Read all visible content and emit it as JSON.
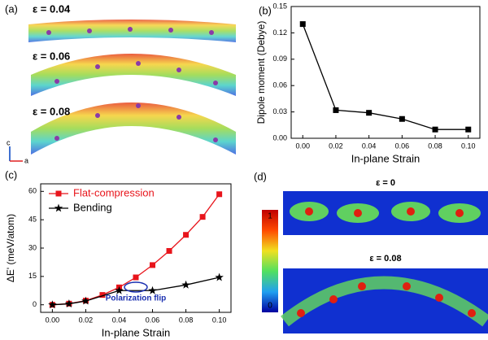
{
  "panel_a": {
    "panel_label": "(a)",
    "strains": [
      "ε = 0.04",
      "ε = 0.06",
      "ε = 0.08"
    ],
    "axis_c": "c",
    "axis_a": "a"
  },
  "chart_data": [
    {
      "type": "line",
      "panel_label": "(b)",
      "x_label": "In-plane Strain",
      "y_label": "Dipole moment (Debye)",
      "xlim": [
        -0.007,
        0.107
      ],
      "ylim": [
        0,
        0.15
      ],
      "xticks": [
        {
          "value": 0,
          "label": "0.00"
        },
        0.02,
        0.04,
        0.06,
        0.08,
        {
          "value": 0.1,
          "label": "0.10"
        }
      ],
      "yticks": [
        {
          "value": 0,
          "label": "0.00"
        },
        0.03,
        0.06,
        0.09,
        0.12,
        0.15
      ],
      "series": [
        {
          "color": "#000000",
          "marker": "square",
          "x": [
            0,
            0.02,
            0.04,
            0.06,
            0.08,
            0.1
          ],
          "values": [
            0.13,
            0.032,
            0.029,
            0.022,
            0.01,
            0.01
          ]
        }
      ]
    },
    {
      "type": "line",
      "panel_label": "(c)",
      "x_label": "In-plane Strain",
      "y_label": "ΔE' (meV/atom)",
      "xlim": [
        -0.007,
        0.107
      ],
      "ylim": [
        -4,
        64
      ],
      "xticks": [
        {
          "value": 0,
          "label": "0.00"
        },
        0.02,
        0.04,
        0.06,
        0.08,
        {
          "value": 0.1,
          "label": "0.10"
        }
      ],
      "yticks": [
        0,
        15,
        30,
        45,
        60
      ],
      "legend": "upper-left",
      "annotation": "Polarization flip",
      "series": [
        {
          "name": "Flat-compression",
          "color": "#e8141b",
          "marker": "square",
          "x": [
            0,
            0.01,
            0.02,
            0.03,
            0.04,
            0.05,
            0.06,
            0.07,
            0.08,
            0.09,
            0.1
          ],
          "values": [
            0,
            0.6,
            2.2,
            5.2,
            9.2,
            14.5,
            21,
            28.5,
            37,
            46.5,
            58.5
          ]
        },
        {
          "name": "Bending",
          "color": "#000000",
          "marker": "star",
          "x": [
            0,
            0.01,
            0.02,
            0.04,
            0.06,
            0.08,
            0.1
          ],
          "values": [
            0,
            0.5,
            2,
            7.5,
            7.5,
            10.5,
            14.5
          ]
        }
      ]
    }
  ],
  "panel_d": {
    "panel_label": "(d)",
    "strains": [
      "ε = 0",
      "ε = 0.08"
    ],
    "colorbar_ticks": [
      "1",
      "0"
    ]
  }
}
